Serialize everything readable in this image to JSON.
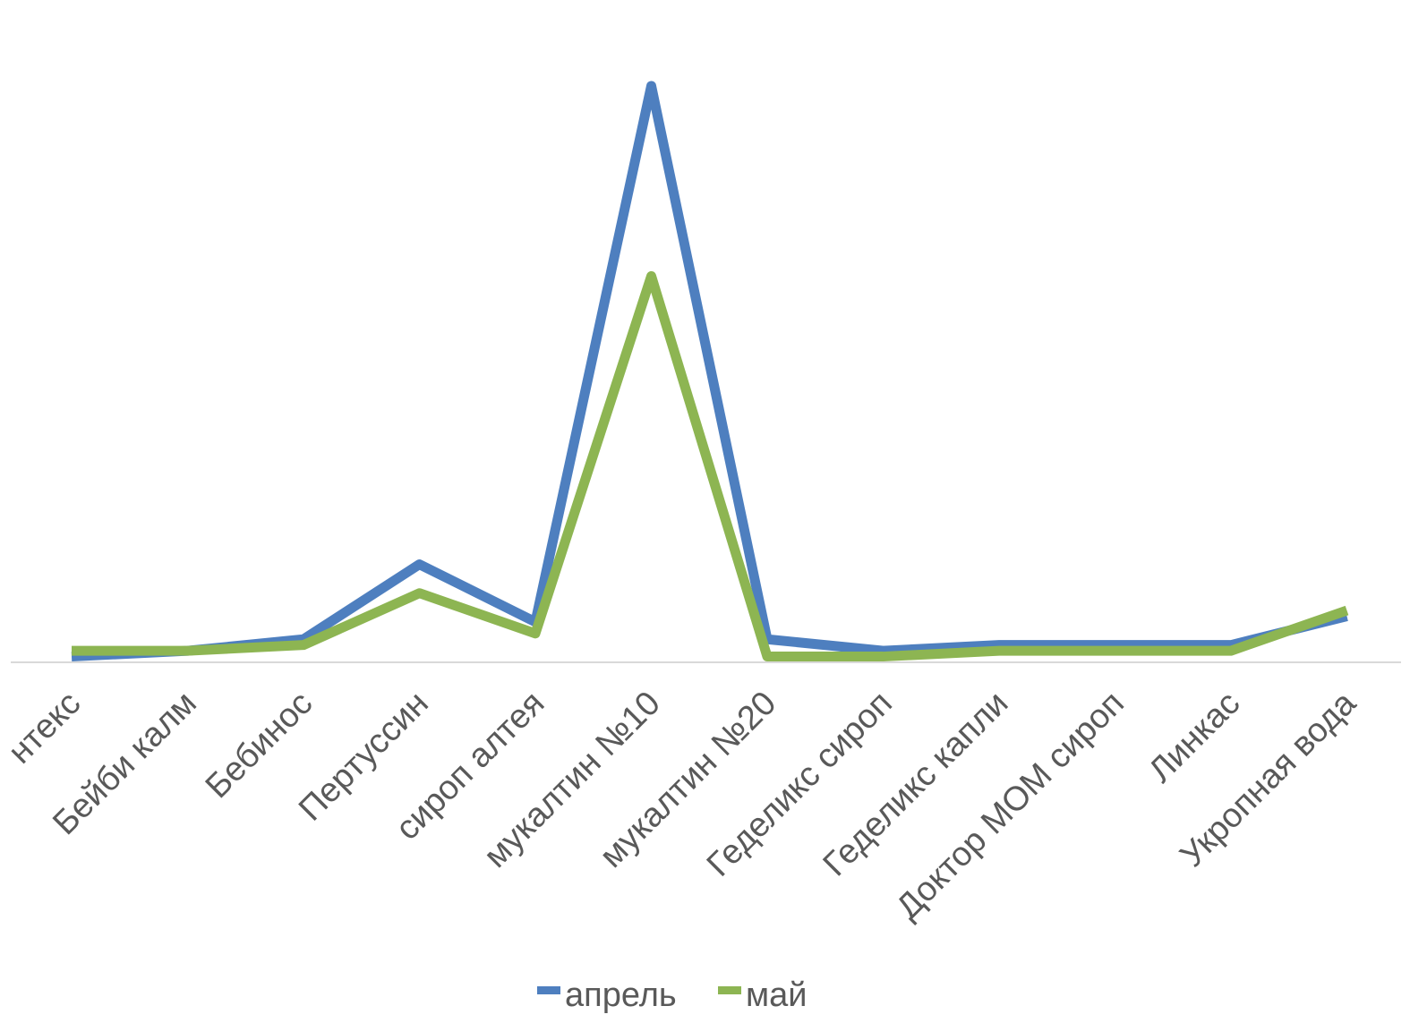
{
  "chart_data": {
    "type": "line",
    "categories": [
      "Бронхикум пертуссин + Тантекс",
      "Бейби калм",
      "Бебинос",
      "Пертуссин",
      "сироп алтея",
      "мукалтин №10",
      "мукалтин №20",
      "Геделикс сироп",
      "Геделикс капли",
      "Доктор МОМ сироп",
      "Линкас",
      "Укропная вода"
    ],
    "visible_tick_labels": [
      "нтекс",
      "Бейби калм",
      "Бебинос",
      "Пертуссин",
      "сироп алтея",
      "мукалтин №10",
      "мукалтин №20",
      "Геделикс сироп",
      "Геделикс капли",
      "Доктор МОМ сироп",
      "Линкас",
      "Укропная вода"
    ],
    "series": [
      {
        "name": "апрель",
        "color": "#4e7fbf",
        "values": [
          1,
          2,
          4,
          17,
          7,
          100,
          4,
          2,
          3,
          3,
          3,
          8
        ]
      },
      {
        "name": "май",
        "color": "#8db552",
        "values": [
          2,
          2,
          3,
          12,
          5,
          67,
          1,
          1,
          2,
          2,
          2,
          9
        ]
      }
    ],
    "ylim": [
      0,
      104
    ],
    "grid": false,
    "legend": "bottom",
    "title": "",
    "xlabel": "",
    "ylabel": ""
  }
}
